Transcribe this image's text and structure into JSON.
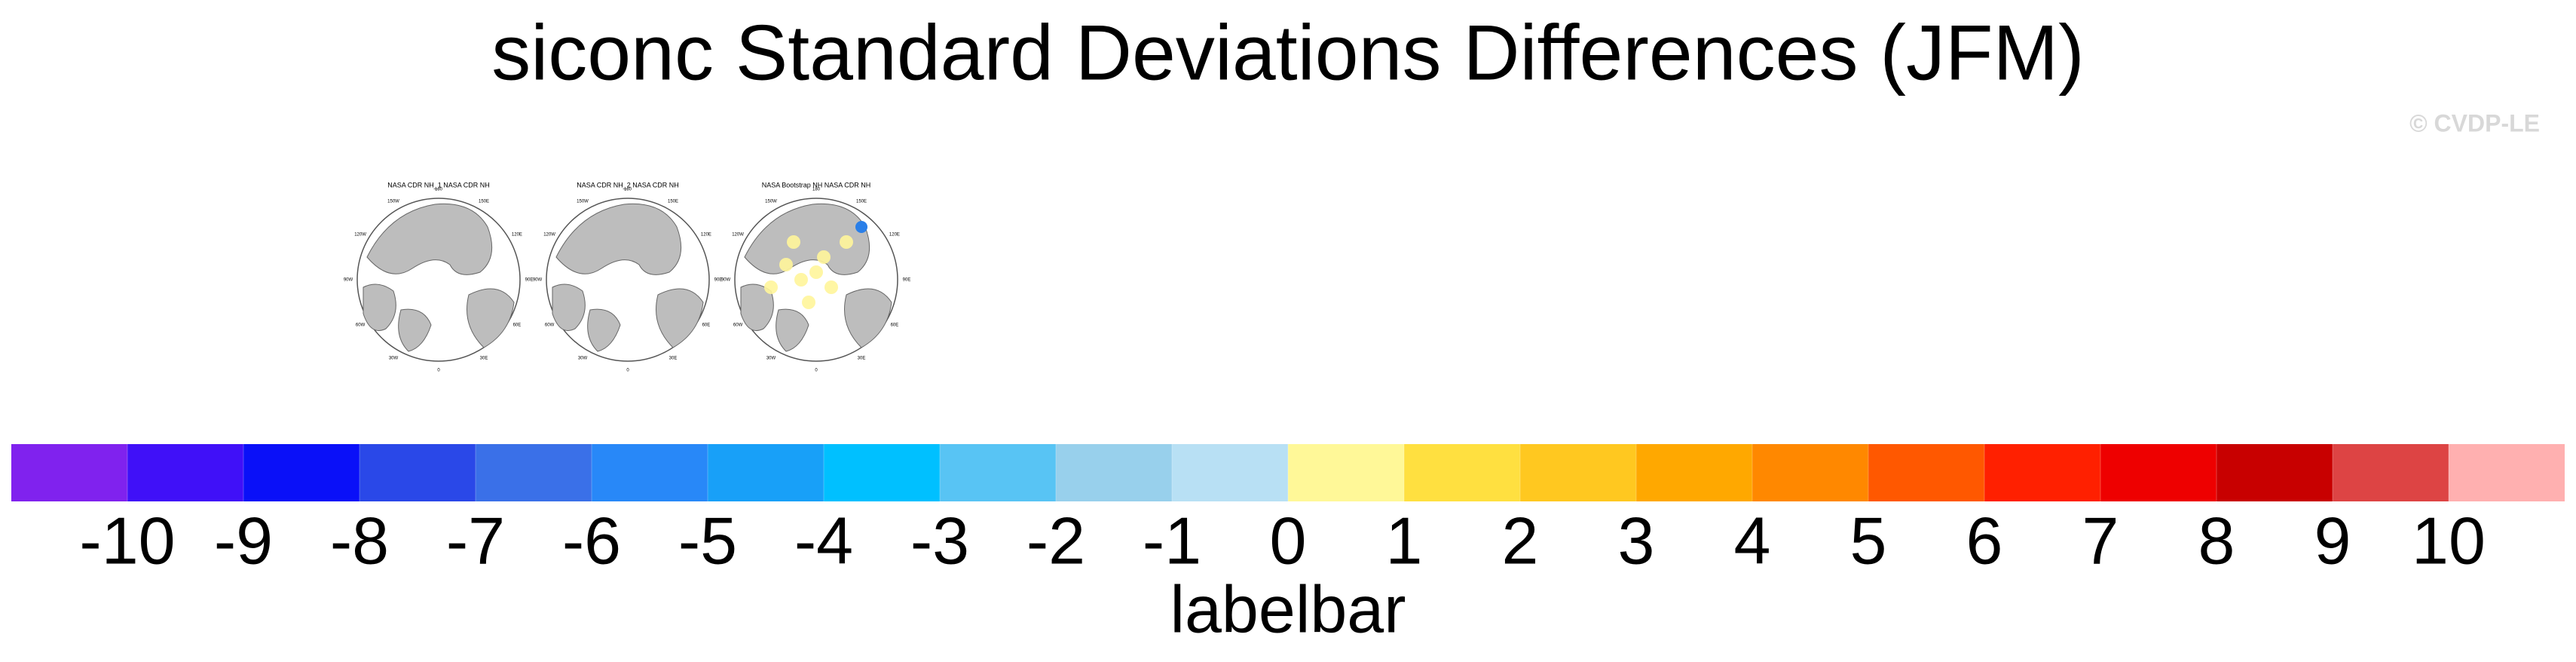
{
  "title": "siconc Standard Deviations Differences (JFM)",
  "credit": "© CVDP-LE",
  "panels": [
    {
      "title": "NASA CDR NH_1 NASA CDR NH",
      "lon_labels": [
        "180",
        "150E",
        "120E",
        "90E",
        "60E",
        "30E",
        "0",
        "30W",
        "60W",
        "90W",
        "120W",
        "150W"
      ]
    },
    {
      "title": "NASA CDR NH_2 NASA CDR NH",
      "lon_labels": [
        "180",
        "150E",
        "120E",
        "90E",
        "60E",
        "30E",
        "0",
        "30W",
        "60W",
        "90W",
        "120W",
        "150W"
      ]
    },
    {
      "title": "NASA Bootstrap NH NASA CDR NH",
      "lon_labels": [
        "180",
        "150E",
        "120E",
        "90E",
        "60E",
        "30E",
        "0",
        "30W",
        "60W",
        "90W",
        "120W",
        "150W"
      ]
    }
  ],
  "colorbar": {
    "label": "labelbar",
    "colors": [
      "#8022ee",
      "#4010f8",
      "#0a10f8",
      "#2a48e8",
      "#3a70e8",
      "#2888f8",
      "#18a0f8",
      "#00c0ff",
      "#58c4f4",
      "#98d0ec",
      "#b8e0f4",
      "#fff898",
      "#ffe040",
      "#ffc820",
      "#ffa800",
      "#ff8800",
      "#ff5800",
      "#ff2000",
      "#ee0000",
      "#c80000",
      "#dd4444",
      "#ffb0b0"
    ],
    "ticks": [
      -10,
      -9,
      -8,
      -7,
      -6,
      -5,
      -4,
      -3,
      -2,
      -1,
      0,
      1,
      2,
      3,
      4,
      5,
      6,
      7,
      8,
      9,
      10
    ]
  }
}
